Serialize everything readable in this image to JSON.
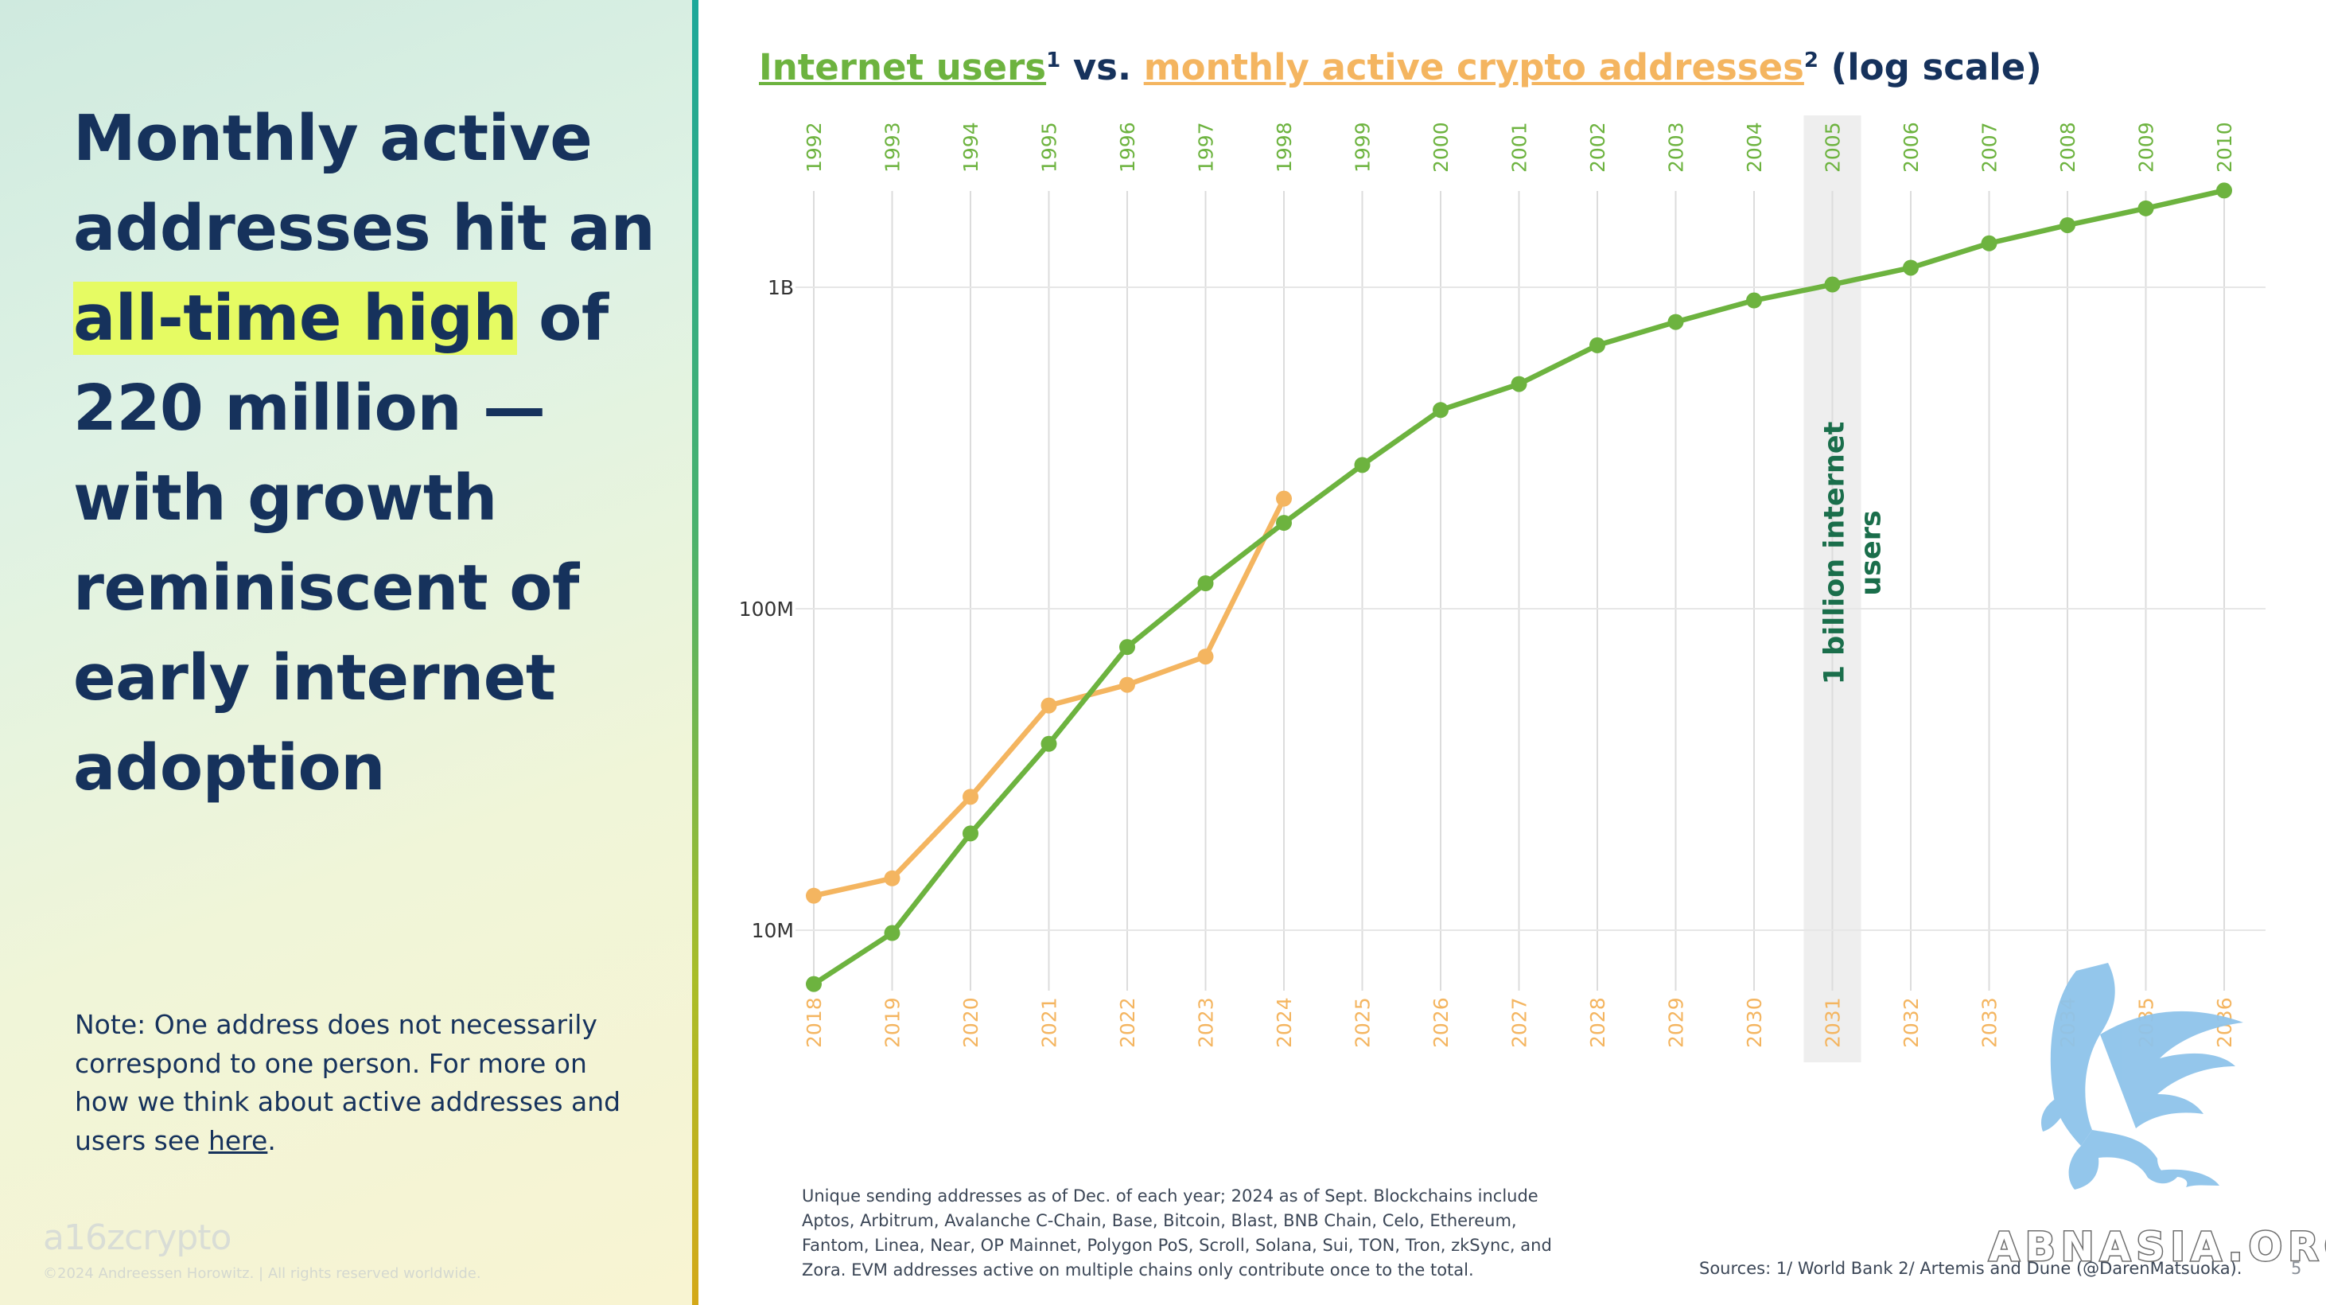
{
  "headline": {
    "before": "Monthly active addresses hit an ",
    "highlight": "all-time high",
    "after": " of 220 million — with growth reminiscent of early internet adoption"
  },
  "note": {
    "text": "Note: One address does not necessarily correspond to one person. For more on how we think about active addresses and users see ",
    "link": "here",
    "end": "."
  },
  "branding": {
    "logo": "a16zcrypto",
    "copyright": "©2024 Andreessen Horowitz. |  All rights reserved worldwide."
  },
  "chart_title": {
    "green": "Internet users",
    "sup1": "1",
    "vs": " vs. ",
    "orange": "monthly active crypto addresses",
    "sup2": "2",
    "suffix": " (log scale)"
  },
  "chart_data": {
    "type": "line",
    "scale": "log",
    "y_ticks": [
      {
        "value": 1000000000,
        "label": "1B"
      },
      {
        "value": 100000000,
        "label": "100M"
      },
      {
        "value": 10000000,
        "label": "10M"
      }
    ],
    "x_top_labels": [
      "1992",
      "1993",
      "1994",
      "1995",
      "1996",
      "1997",
      "1998",
      "1999",
      "2000",
      "2001",
      "2002",
      "2003",
      "2004",
      "2005",
      "2006",
      "2007",
      "2008",
      "2009",
      "2010"
    ],
    "x_bottom_labels": [
      "2018",
      "2019",
      "2020",
      "2021",
      "2022",
      "2023",
      "2024",
      "2025",
      "2026",
      "2027",
      "2028",
      "2029",
      "2030",
      "2031",
      "2032",
      "2033",
      "2034",
      "2035",
      "2036"
    ],
    "series": [
      {
        "name": "Internet users",
        "color": "#6db33f",
        "axis": "top",
        "values": [
          6800000.0,
          9800000.0,
          20000000.0,
          38000000.0,
          76000000.0,
          120000000.0,
          185000000.0,
          280000000.0,
          415000000.0,
          500000000.0,
          660000000.0,
          780000000.0,
          910000000.0,
          1020000000.0,
          1150000000.0,
          1370000000.0,
          1560000000.0,
          1760000000.0,
          2000000000.0
        ]
      },
      {
        "name": "monthly active crypto addresses",
        "color": "#f4b560",
        "axis": "bottom",
        "values": [
          12800000.0,
          14500000.0,
          26000000.0,
          50000000.0,
          58000000.0,
          71000000.0,
          220000000.0
        ]
      }
    ],
    "highlight": {
      "index": 13,
      "label": "1 billion internet users"
    },
    "grid": true
  },
  "footnote": "Unique sending addresses as of Dec. of each year; 2024 as of Sept. Blockchains include Aptos, Arbitrum, Avalanche C-Chain, Base, Bitcoin, Blast, BNB Chain, Celo, Ethereum, Fantom, Linea, Near, OP Mainnet, Polygon PoS, Scroll, Solana, Sui, TON, Tron, zkSync, and Zora. EVM addresses active on multiple chains only contribute once to the total.",
  "sources": "Sources: 1/ World Bank 2/ Artemis and Dune (@DarenMatsuoka).",
  "page_number": "5",
  "watermark": "ABNASIA.ORG",
  "colors": {
    "headline": "#16325c",
    "highlight": "#e6fb63",
    "internet": "#6db33f",
    "crypto": "#f4b560",
    "annotation": "#1a6e4b"
  }
}
